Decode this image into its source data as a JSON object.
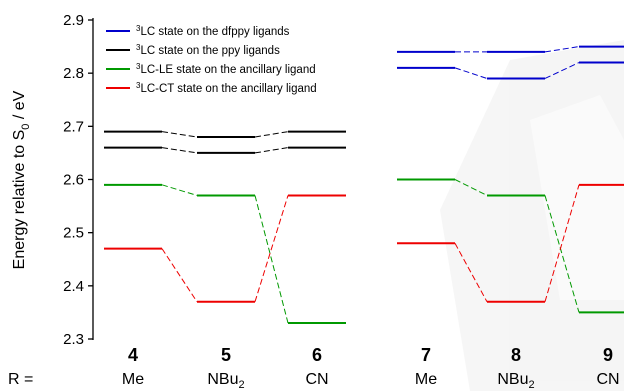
{
  "chart_data": {
    "type": "line",
    "ylabel_main": "Energy relative to S",
    "ylabel_sub": "0",
    "ylabel_unit": " / eV",
    "ylim": [
      2.3,
      2.9
    ],
    "yticks": [
      "2.3",
      "2.4",
      "2.5",
      "2.6",
      "2.7",
      "2.8",
      "2.9"
    ],
    "row_label": "R =",
    "compounds": [
      {
        "number": "4",
        "r_main": "Me",
        "r_sub": ""
      },
      {
        "number": "5",
        "r_main": "NBu",
        "r_sub": "2"
      },
      {
        "number": "6",
        "r_main": "CN",
        "r_sub": ""
      },
      {
        "number": "7",
        "r_main": "Me",
        "r_sub": ""
      },
      {
        "number": "8",
        "r_main": "NBu",
        "r_sub": "2"
      },
      {
        "number": "9",
        "r_main": "CN",
        "r_sub": ""
      }
    ],
    "legend": [
      {
        "sup": "3",
        "label": "LC state on the dfppy ligands",
        "color": "#0000cc"
      },
      {
        "sup": "3",
        "label": "LC state on the ppy ligands",
        "color": "#000000"
      },
      {
        "sup": "3",
        "label": "LC-LE state on the ancillary ligand",
        "color": "#009900"
      },
      {
        "sup": "3",
        "label": "LC-CT state on the ancillary ligand",
        "color": "#ee0000"
      }
    ],
    "groups": [
      {
        "compounds": [
          "4",
          "5",
          "6"
        ],
        "series": [
          {
            "legend_index": 1,
            "color": "#000000",
            "values": [
              2.69,
              2.68,
              2.69
            ]
          },
          {
            "legend_index": 1,
            "color": "#000000",
            "values": [
              2.66,
              2.65,
              2.66
            ]
          },
          {
            "legend_index": 2,
            "color": "#009900",
            "values": [
              2.59,
              2.57,
              2.33
            ]
          },
          {
            "legend_index": 3,
            "color": "#ee0000",
            "values": [
              2.47,
              2.37,
              2.57
            ]
          }
        ]
      },
      {
        "compounds": [
          "7",
          "8",
          "9"
        ],
        "series": [
          {
            "legend_index": 0,
            "color": "#0000cc",
            "values": [
              2.84,
              2.84,
              2.85
            ]
          },
          {
            "legend_index": 0,
            "color": "#0000cc",
            "values": [
              2.81,
              2.79,
              2.82
            ]
          },
          {
            "legend_index": 2,
            "color": "#009900",
            "values": [
              2.6,
              2.57,
              2.35
            ]
          },
          {
            "legend_index": 3,
            "color": "#ee0000",
            "values": [
              2.48,
              2.37,
              2.59
            ]
          }
        ]
      }
    ]
  }
}
